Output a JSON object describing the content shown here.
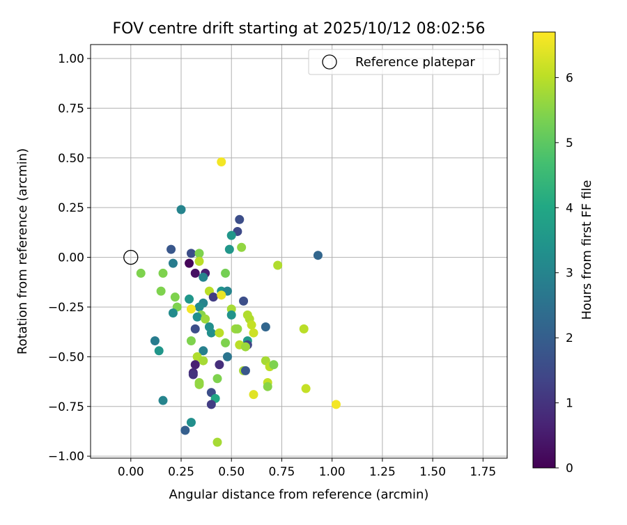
{
  "chart_data": {
    "type": "scatter",
    "title": "FOV centre drift starting at 2025/10/12 08:02:56",
    "xlabel": "Angular distance from reference (arcmin)",
    "ylabel": "Rotation from reference (arcmin)",
    "xlim": [
      -0.2,
      1.87
    ],
    "ylim": [
      -1.01,
      1.07
    ],
    "x_ticks": [
      "0.00",
      "0.25",
      "0.50",
      "0.75",
      "1.00",
      "1.25",
      "1.50",
      "1.75"
    ],
    "y_ticks": [
      "−1.00",
      "−0.75",
      "−0.50",
      "−0.25",
      "0.00",
      "0.25",
      "0.50",
      "0.75",
      "1.00"
    ],
    "grid": true,
    "legend": {
      "placement": "upper right",
      "entries": [
        "Reference platepar"
      ]
    },
    "reference_point": {
      "x": 0.0,
      "y": 0.0
    },
    "colorbar": {
      "label": "Hours from first FF file",
      "range": [
        0,
        6.7
      ],
      "ticks": [
        "0",
        "1",
        "2",
        "3",
        "4",
        "5",
        "6"
      ],
      "colormap": "viridis"
    },
    "points": [
      [
        0.45,
        0.48,
        6.6
      ],
      [
        0.25,
        0.24,
        3.0
      ],
      [
        0.54,
        0.19,
        1.6
      ],
      [
        0.53,
        0.13,
        1.5
      ],
      [
        0.5,
        0.11,
        3.5
      ],
      [
        0.2,
        0.04,
        1.8
      ],
      [
        0.3,
        0.02,
        1.6
      ],
      [
        0.34,
        0.02,
        5.4
      ],
      [
        0.49,
        0.04,
        3.5
      ],
      [
        0.55,
        0.05,
        5.6
      ],
      [
        0.93,
        0.01,
        2.2
      ],
      [
        0.21,
        -0.03,
        2.8
      ],
      [
        0.29,
        -0.03,
        0.1
      ],
      [
        0.34,
        -0.02,
        6.0
      ],
      [
        0.73,
        -0.04,
        5.9
      ],
      [
        0.05,
        -0.08,
        5.4
      ],
      [
        0.16,
        -0.08,
        5.4
      ],
      [
        0.32,
        -0.08,
        0.3
      ],
      [
        0.37,
        -0.08,
        0.6
      ],
      [
        0.47,
        -0.08,
        5.3
      ],
      [
        0.36,
        -0.1,
        3.0
      ],
      [
        0.15,
        -0.17,
        5.4
      ],
      [
        0.39,
        -0.17,
        6.0
      ],
      [
        0.45,
        -0.17,
        3.4
      ],
      [
        0.48,
        -0.17,
        3.0
      ],
      [
        0.22,
        -0.2,
        5.4
      ],
      [
        0.41,
        -0.2,
        1.2
      ],
      [
        0.45,
        -0.19,
        6.5
      ],
      [
        0.29,
        -0.21,
        3.5
      ],
      [
        0.56,
        -0.22,
        1.6
      ],
      [
        0.36,
        -0.23,
        3.0
      ],
      [
        0.23,
        -0.25,
        5.4
      ],
      [
        0.34,
        -0.25,
        3.2
      ],
      [
        0.3,
        -0.26,
        6.6
      ],
      [
        0.5,
        -0.26,
        5.8
      ],
      [
        0.21,
        -0.28,
        3.2
      ],
      [
        0.35,
        -0.29,
        5.5
      ],
      [
        0.5,
        -0.29,
        3.4
      ],
      [
        0.58,
        -0.29,
        5.9
      ],
      [
        0.33,
        -0.3,
        3.3
      ],
      [
        0.37,
        -0.31,
        5.7
      ],
      [
        0.59,
        -0.31,
        5.9
      ],
      [
        0.6,
        -0.34,
        6.1
      ],
      [
        0.32,
        -0.36,
        1.6
      ],
      [
        0.39,
        -0.35,
        3.3
      ],
      [
        0.52,
        -0.36,
        5.7
      ],
      [
        0.53,
        -0.36,
        5.6
      ],
      [
        0.67,
        -0.35,
        2.2
      ],
      [
        0.86,
        -0.36,
        6.0
      ],
      [
        0.4,
        -0.38,
        3.3
      ],
      [
        0.44,
        -0.38,
        6.0
      ],
      [
        0.61,
        -0.38,
        6.2
      ],
      [
        0.12,
        -0.42,
        2.8
      ],
      [
        0.3,
        -0.42,
        5.4
      ],
      [
        0.47,
        -0.43,
        5.4
      ],
      [
        0.58,
        -0.42,
        3.6
      ],
      [
        0.54,
        -0.44,
        6.0
      ],
      [
        0.58,
        -0.44,
        1.4
      ],
      [
        0.14,
        -0.47,
        3.5
      ],
      [
        0.36,
        -0.47,
        2.9
      ],
      [
        0.57,
        -0.45,
        5.7
      ],
      [
        0.33,
        -0.5,
        5.9
      ],
      [
        0.48,
        -0.5,
        2.6
      ],
      [
        0.36,
        -0.52,
        5.8
      ],
      [
        0.67,
        -0.52,
        5.8
      ],
      [
        0.32,
        -0.54,
        0.6
      ],
      [
        0.44,
        -0.54,
        0.9
      ],
      [
        0.69,
        -0.55,
        6.0
      ],
      [
        0.71,
        -0.54,
        5.4
      ],
      [
        0.56,
        -0.57,
        5.8
      ],
      [
        0.57,
        -0.57,
        1.8
      ],
      [
        0.31,
        -0.58,
        0.8
      ],
      [
        0.31,
        -0.59,
        1.0
      ],
      [
        0.43,
        -0.61,
        5.4
      ],
      [
        0.68,
        -0.63,
        6.1
      ],
      [
        0.34,
        -0.63,
        5.6
      ],
      [
        0.34,
        -0.64,
        5.6
      ],
      [
        0.68,
        -0.65,
        5.5
      ],
      [
        0.87,
        -0.66,
        6.1
      ],
      [
        0.4,
        -0.68,
        1.6
      ],
      [
        0.61,
        -0.69,
        6.4
      ],
      [
        0.16,
        -0.72,
        3.0
      ],
      [
        0.42,
        -0.71,
        4.0
      ],
      [
        0.4,
        -0.74,
        1.2
      ],
      [
        1.02,
        -0.74,
        6.6
      ],
      [
        0.3,
        -0.83,
        3.3
      ],
      [
        0.27,
        -0.87,
        2.0
      ],
      [
        0.43,
        -0.93,
        5.8
      ]
    ]
  }
}
